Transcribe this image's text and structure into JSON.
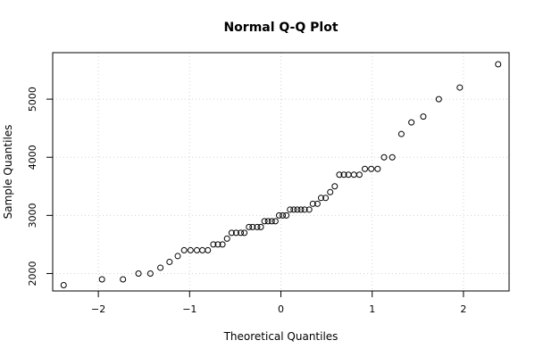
{
  "chart_data": {
    "type": "scatter",
    "title": "Normal Q-Q Plot",
    "xlabel": "Theoretical Quantiles",
    "ylabel": "Sample Quantiles",
    "xlim": [
      -2.5,
      2.5
    ],
    "ylim": [
      1700,
      5800
    ],
    "x_ticks": [
      -2,
      -1,
      0,
      1,
      2
    ],
    "x_tick_labels": [
      "−2",
      "−1",
      "0",
      "1",
      "2"
    ],
    "y_ticks": [
      2000,
      3000,
      4000,
      5000
    ],
    "y_tick_labels": [
      "2000",
      "3000",
      "4000",
      "5000"
    ],
    "grid": true,
    "point_color": "#000000",
    "points": [
      [
        -2.38,
        1800
      ],
      [
        -1.96,
        1900
      ],
      [
        -1.73,
        1900
      ],
      [
        -1.56,
        2000
      ],
      [
        -1.43,
        2000
      ],
      [
        -1.32,
        2100
      ],
      [
        -1.22,
        2200
      ],
      [
        -1.13,
        2300
      ],
      [
        -1.06,
        2400
      ],
      [
        -0.99,
        2400
      ],
      [
        -0.92,
        2400
      ],
      [
        -0.86,
        2400
      ],
      [
        -0.8,
        2400
      ],
      [
        -0.74,
        2500
      ],
      [
        -0.69,
        2500
      ],
      [
        -0.64,
        2500
      ],
      [
        -0.59,
        2600
      ],
      [
        -0.54,
        2700
      ],
      [
        -0.49,
        2700
      ],
      [
        -0.44,
        2700
      ],
      [
        -0.4,
        2700
      ],
      [
        -0.35,
        2800
      ],
      [
        -0.31,
        2800
      ],
      [
        -0.26,
        2800
      ],
      [
        -0.22,
        2800
      ],
      [
        -0.18,
        2900
      ],
      [
        -0.14,
        2900
      ],
      [
        -0.1,
        2900
      ],
      [
        -0.06,
        2900
      ],
      [
        -0.02,
        3000
      ],
      [
        0.02,
        3000
      ],
      [
        0.06,
        3000
      ],
      [
        0.1,
        3100
      ],
      [
        0.14,
        3100
      ],
      [
        0.18,
        3100
      ],
      [
        0.22,
        3100
      ],
      [
        0.26,
        3100
      ],
      [
        0.31,
        3100
      ],
      [
        0.35,
        3200
      ],
      [
        0.4,
        3200
      ],
      [
        0.44,
        3300
      ],
      [
        0.49,
        3300
      ],
      [
        0.54,
        3400
      ],
      [
        0.59,
        3500
      ],
      [
        0.64,
        3700
      ],
      [
        0.69,
        3700
      ],
      [
        0.74,
        3700
      ],
      [
        0.8,
        3700
      ],
      [
        0.86,
        3700
      ],
      [
        0.92,
        3800
      ],
      [
        0.99,
        3800
      ],
      [
        1.06,
        3800
      ],
      [
        1.13,
        4000
      ],
      [
        1.22,
        4000
      ],
      [
        1.32,
        4400
      ],
      [
        1.43,
        4600
      ],
      [
        1.56,
        4700
      ],
      [
        1.73,
        5000
      ],
      [
        1.96,
        5200
      ],
      [
        2.38,
        5600
      ]
    ]
  }
}
